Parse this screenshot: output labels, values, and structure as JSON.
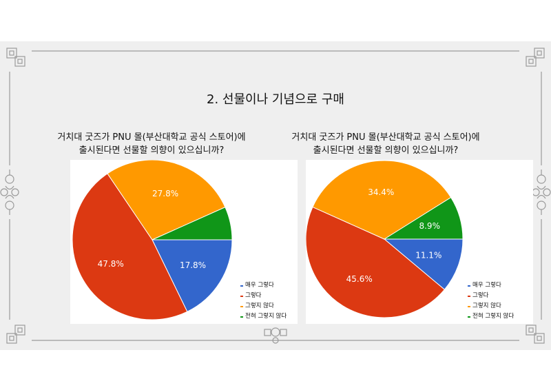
{
  "slide": {
    "title": "2. 선물이나 기념으로 구매",
    "background": "#efefef",
    "ornament_color": "#9a9a9a"
  },
  "legend_labels": [
    "매우 그렇다",
    "그렇다",
    "그렇지 않다",
    "전혀 그렇지 않다"
  ],
  "colors": [
    "#3366cc",
    "#dc3912",
    "#ff9900",
    "#109618"
  ],
  "chart_data": [
    {
      "type": "pie",
      "title_line1": "거치대 굿즈가 PNU 몰(부산대학교 공식 스토어)에",
      "title_line2": "출시된다면 선물할 의향이 있으십니까?",
      "labels": [
        "매우 그렇다",
        "그렇다",
        "그렇지 않다",
        "전혀 그렇지 않다"
      ],
      "values": [
        17.8,
        47.8,
        27.8,
        6.7
      ],
      "data_labels": [
        "17.8%",
        "47.8%",
        "27.8%",
        ""
      ],
      "legend_position": "right"
    },
    {
      "type": "pie",
      "title_line1": "거치대 굿즈가 PNU 몰(부산대학교 공식 스토어)에",
      "title_line2": "출시된다면 선물할 의향이 있으십니까?",
      "labels": [
        "매우 그렇다",
        "그렇다",
        "그렇지 않다",
        "전혀 그렇지 않다"
      ],
      "values": [
        11.1,
        45.6,
        34.4,
        8.9
      ],
      "data_labels": [
        "11.1%",
        "45.6%",
        "34.4%",
        "8.9%"
      ],
      "legend_position": "right"
    }
  ]
}
